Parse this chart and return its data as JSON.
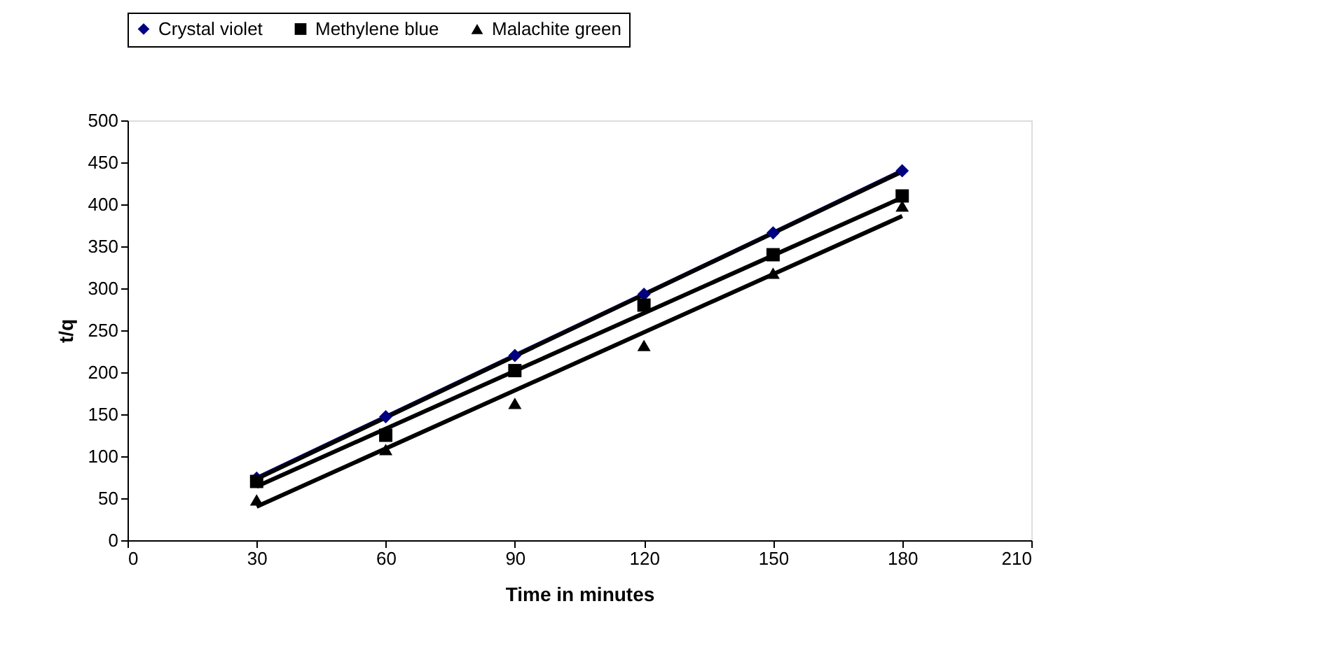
{
  "chart_data": {
    "type": "scatter",
    "xlabel": "Time in minutes",
    "ylabel": "t/q",
    "xlim": [
      0,
      210
    ],
    "xticks": [
      0,
      30,
      60,
      90,
      120,
      150,
      180,
      210
    ],
    "ylim": [
      0,
      500
    ],
    "yticks": [
      0,
      50,
      100,
      150,
      200,
      250,
      300,
      350,
      400,
      450,
      500
    ],
    "grid": false,
    "legend": "top",
    "series": [
      {
        "name": "Crystal violet",
        "type": "line",
        "marker": "diamond",
        "color": "#000080",
        "x": [
          30,
          60,
          90,
          120,
          150,
          180
        ],
        "values": [
          74,
          147,
          220,
          293,
          366,
          440
        ]
      },
      {
        "name": "Methylene blue",
        "marker": "square",
        "color": "#000000",
        "x": [
          30,
          60,
          90,
          120,
          150,
          180
        ],
        "values": [
          70,
          125,
          202,
          280,
          340,
          410
        ]
      },
      {
        "name": "Malachite green",
        "marker": "triangle",
        "color": "#000000",
        "x": [
          30,
          60,
          90,
          120,
          150,
          180
        ],
        "values": [
          48,
          108,
          163,
          232,
          318,
          398
        ]
      },
      {
        "type": "line",
        "marker": "none",
        "color": "#000000",
        "x": [
          30,
          180
        ],
        "values": [
          73,
          439
        ]
      },
      {
        "type": "line",
        "marker": "none",
        "color": "#000000",
        "x": [
          30,
          180
        ],
        "values": [
          64,
          408
        ]
      },
      {
        "type": "line",
        "marker": "none",
        "color": "#000000",
        "x": [
          30,
          180
        ],
        "values": [
          40,
          386
        ]
      }
    ]
  }
}
